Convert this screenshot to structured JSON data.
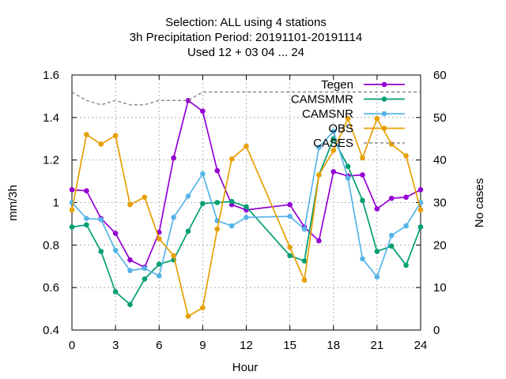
{
  "chart_data": {
    "type": "line",
    "title": [
      "Selection: ALL using     4 stations",
      "3h Precipitation   Period: 20191101-20191114",
      "Used  12 + 03 04 ... 24"
    ],
    "xlabel": "Hour",
    "ylabel": "mm/3h",
    "y2label": "No cases",
    "xlim": [
      0,
      24
    ],
    "ylim": [
      0.4,
      1.6
    ],
    "y2lim": [
      0,
      60
    ],
    "xticks": [
      0,
      3,
      6,
      9,
      12,
      15,
      18,
      21,
      24
    ],
    "yticks": [
      "0.4",
      "0.6",
      "0.8",
      "1",
      "1.2",
      "1.4",
      "1.6"
    ],
    "y2ticks": [
      "0",
      "10",
      "20",
      "30",
      "40",
      "50",
      "60"
    ],
    "grid": true,
    "legend_position": "top-right",
    "series": [
      {
        "name": "Tegen",
        "color": "#9400d3",
        "marker": "circle",
        "x": [
          0,
          1,
          2,
          3,
          4,
          5,
          6,
          7,
          8,
          9,
          10,
          11,
          12,
          15,
          16,
          17,
          18,
          19,
          20,
          21,
          22,
          23,
          24
        ],
        "y": [
          1.06,
          1.055,
          0.925,
          0.855,
          0.73,
          0.695,
          0.86,
          1.21,
          1.48,
          1.43,
          1.15,
          0.99,
          0.965,
          0.99,
          0.885,
          0.82,
          1.145,
          1.125,
          1.13,
          0.97,
          1.02,
          1.025,
          1.06
        ]
      },
      {
        "name": "CAMSMMR",
        "color": "#009e73",
        "marker": "circle",
        "x": [
          0,
          1,
          2,
          3,
          4,
          5,
          6,
          7,
          8,
          9,
          10,
          11,
          12,
          15,
          16,
          17,
          18,
          19,
          20,
          21,
          22,
          23,
          24
        ],
        "y": [
          0.885,
          0.895,
          0.77,
          0.58,
          0.52,
          0.64,
          0.71,
          0.73,
          0.865,
          0.995,
          1.0,
          1.005,
          0.98,
          0.75,
          0.725,
          1.13,
          1.3,
          1.17,
          1.01,
          0.77,
          0.795,
          0.705,
          0.885
        ]
      },
      {
        "name": "CAMSNR",
        "color": "#56b4e9",
        "marker": "circle",
        "x": [
          0,
          1,
          2,
          3,
          4,
          5,
          6,
          7,
          8,
          9,
          10,
          11,
          12,
          15,
          16,
          17,
          18,
          19,
          20,
          21,
          22,
          23,
          24
        ],
        "y": [
          1.0,
          0.925,
          0.92,
          0.775,
          0.68,
          0.69,
          0.655,
          0.93,
          1.03,
          1.135,
          0.915,
          0.89,
          0.93,
          0.935,
          0.875,
          1.26,
          1.335,
          1.115,
          0.735,
          0.65,
          0.845,
          0.89,
          1.0
        ]
      },
      {
        "name": "OBS",
        "color": "#e69f00",
        "marker": "circle",
        "x": [
          0,
          1,
          2,
          3,
          4,
          5,
          6,
          7,
          8,
          9,
          10,
          11,
          12,
          15,
          16,
          17,
          18,
          19,
          20,
          21,
          22,
          23,
          24
        ],
        "y": [
          0.965,
          1.32,
          1.275,
          1.315,
          0.99,
          1.025,
          0.83,
          0.75,
          0.465,
          0.505,
          0.875,
          1.205,
          1.265,
          0.79,
          0.635,
          1.13,
          1.245,
          1.395,
          1.21,
          1.395,
          1.275,
          1.22,
          0.965
        ]
      },
      {
        "name": "CASES",
        "color": "#8c8c8c",
        "marker": "none",
        "dash": true,
        "axis": "y2",
        "x": [
          0,
          1,
          2,
          3,
          4,
          5,
          6,
          7,
          8,
          9,
          10,
          11,
          12,
          13,
          14,
          15,
          16,
          17,
          18,
          19,
          20,
          21,
          22,
          23,
          24
        ],
        "y": [
          56,
          54,
          53,
          54,
          53,
          53,
          54,
          54,
          54,
          56,
          56,
          56,
          56,
          56,
          56,
          56,
          56,
          56,
          56,
          56,
          56,
          56,
          56,
          56,
          56
        ]
      }
    ]
  }
}
